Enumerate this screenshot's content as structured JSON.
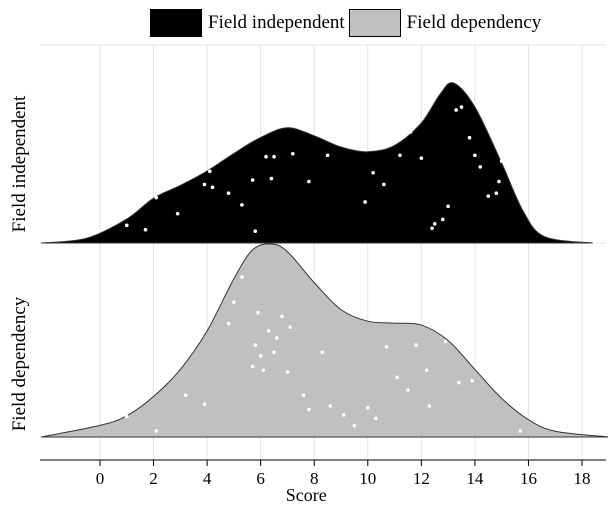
{
  "chart_data": {
    "type": "density",
    "xlabel": "Score",
    "xticks": [
      0,
      2,
      4,
      6,
      8,
      10,
      12,
      14,
      16,
      18
    ],
    "xlim": [
      -2.2,
      19.0
    ],
    "grid": true,
    "legend_position": "top",
    "series": [
      {
        "name": "Field independent",
        "color": "#000000",
        "point_color": "#ffffff",
        "density": [
          [
            -2.2,
            0.0
          ],
          [
            -0.5,
            0.03
          ],
          [
            1,
            0.15
          ],
          [
            2,
            0.28
          ],
          [
            3,
            0.36
          ],
          [
            4,
            0.45
          ],
          [
            5,
            0.56
          ],
          [
            6,
            0.66
          ],
          [
            7,
            0.72
          ],
          [
            8,
            0.67
          ],
          [
            9,
            0.6
          ],
          [
            10,
            0.57
          ],
          [
            11,
            0.61
          ],
          [
            12,
            0.75
          ],
          [
            12.7,
            0.93
          ],
          [
            13.2,
            1.0
          ],
          [
            14,
            0.85
          ],
          [
            15,
            0.5
          ],
          [
            15.8,
            0.2
          ],
          [
            16.6,
            0.04
          ],
          [
            18.4,
            0.0
          ]
        ],
        "points": [
          [
            1.0,
            0.08
          ],
          [
            1.0,
            0.17
          ],
          [
            1.2,
            0.4
          ],
          [
            1.7,
            0.05
          ],
          [
            2.1,
            0.27
          ],
          [
            2.2,
            0.4
          ],
          [
            2.9,
            0.16
          ],
          [
            3.3,
            0.67
          ],
          [
            3.9,
            0.36
          ],
          [
            4.1,
            0.45
          ],
          [
            4.2,
            0.34
          ],
          [
            4.8,
            0.3
          ],
          [
            5.0,
            0.67
          ],
          [
            5.3,
            0.22
          ],
          [
            5.7,
            0.39
          ],
          [
            5.8,
            0.04
          ],
          [
            6.2,
            0.55
          ],
          [
            6.4,
            0.4
          ],
          [
            6.5,
            0.55
          ],
          [
            7.1,
            0.82
          ],
          [
            7.2,
            0.57
          ],
          [
            7.8,
            0.38
          ],
          [
            8.5,
            0.56
          ],
          [
            8.9,
            0.75
          ],
          [
            9.3,
            0.76
          ],
          [
            9.9,
            0.24
          ],
          [
            10.2,
            0.44
          ],
          [
            10.6,
            0.36
          ],
          [
            10.9,
            0.77
          ],
          [
            11.2,
            0.56
          ],
          [
            11.6,
            0.72
          ],
          [
            12.0,
            0.54
          ],
          [
            12.4,
            0.06
          ],
          [
            12.5,
            0.09
          ],
          [
            12.8,
            0.12
          ],
          [
            13.0,
            0.21
          ],
          [
            13.3,
            0.87
          ],
          [
            13.5,
            0.89
          ],
          [
            13.8,
            0.68
          ],
          [
            14.0,
            0.56
          ],
          [
            14.2,
            0.48
          ],
          [
            14.5,
            0.28
          ],
          [
            14.8,
            0.3
          ],
          [
            14.9,
            0.38
          ],
          [
            15.0,
            0.52
          ]
        ]
      },
      {
        "name": "Field dependency",
        "color": "#c0c0c0",
        "point_color": "#ffffff",
        "density": [
          [
            -2.2,
            0.0
          ],
          [
            0,
            0.06
          ],
          [
            1,
            0.11
          ],
          [
            2,
            0.21
          ],
          [
            3,
            0.35
          ],
          [
            4,
            0.55
          ],
          [
            5,
            0.82
          ],
          [
            5.7,
            0.97
          ],
          [
            6.4,
            1.0
          ],
          [
            7,
            0.96
          ],
          [
            8,
            0.8
          ],
          [
            9,
            0.66
          ],
          [
            10,
            0.6
          ],
          [
            11,
            0.59
          ],
          [
            12,
            0.58
          ],
          [
            13,
            0.5
          ],
          [
            14,
            0.35
          ],
          [
            15,
            0.2
          ],
          [
            16,
            0.09
          ],
          [
            17,
            0.03
          ],
          [
            19.0,
            0.0
          ]
        ],
        "points": [
          [
            1.0,
            0.08
          ],
          [
            2.1,
            0.0
          ],
          [
            3.2,
            0.2
          ],
          [
            3.9,
            0.15
          ],
          [
            4.8,
            0.6
          ],
          [
            5.0,
            0.72
          ],
          [
            5.3,
            0.86
          ],
          [
            5.7,
            0.36
          ],
          [
            5.8,
            0.48
          ],
          [
            5.9,
            0.66
          ],
          [
            6.0,
            0.42
          ],
          [
            6.1,
            0.34
          ],
          [
            6.3,
            0.56
          ],
          [
            6.5,
            0.44
          ],
          [
            6.6,
            0.52
          ],
          [
            6.8,
            0.64
          ],
          [
            7.0,
            0.33
          ],
          [
            7.1,
            0.58
          ],
          [
            7.6,
            0.2
          ],
          [
            7.8,
            0.12
          ],
          [
            8.3,
            0.44
          ],
          [
            8.6,
            0.14
          ],
          [
            9.1,
            0.09
          ],
          [
            9.5,
            0.03
          ],
          [
            10.0,
            0.13
          ],
          [
            10.3,
            0.07
          ],
          [
            10.7,
            0.47
          ],
          [
            11.1,
            0.3
          ],
          [
            11.5,
            0.23
          ],
          [
            11.8,
            0.48
          ],
          [
            12.2,
            0.34
          ],
          [
            12.3,
            0.14
          ],
          [
            12.9,
            0.5
          ],
          [
            13.4,
            0.27
          ],
          [
            13.9,
            0.28
          ],
          [
            14.4,
            0.6
          ],
          [
            14.9,
            0.58
          ],
          [
            15.7,
            0.0
          ]
        ]
      }
    ]
  }
}
